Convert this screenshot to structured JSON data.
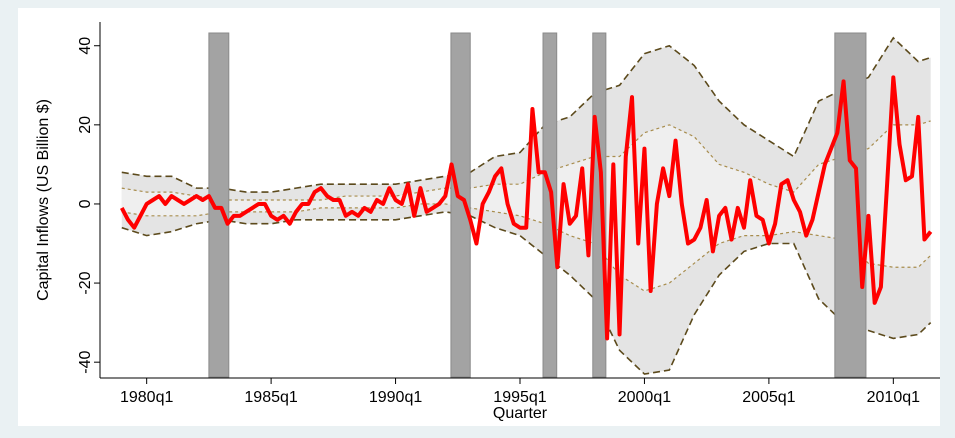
{
  "chart_data": {
    "type": "line",
    "y_label": "Capital Inflows (US Billion $)",
    "x_label": "Quarter",
    "xlim": [
      72.5,
      207.5
    ],
    "ylim": [
      -44,
      46
    ],
    "xticks": [
      {
        "value": 80,
        "label": "1980q1"
      },
      {
        "value": 100,
        "label": "1985q1"
      },
      {
        "value": 120,
        "label": "1990q1"
      },
      {
        "value": 140,
        "label": "1995q1"
      },
      {
        "value": 160,
        "label": "2000q1"
      },
      {
        "value": 180,
        "label": "2005q1"
      },
      {
        "value": 200,
        "label": "2010q1"
      }
    ],
    "yticks": [
      -40,
      -20,
      0,
      20,
      40
    ],
    "shade_color": "#a3a3a3",
    "shaded_periods": [
      [
        90,
        93.2
      ],
      [
        128.9,
        132
      ],
      [
        143.7,
        145.9
      ],
      [
        151.7,
        153.8
      ],
      [
        190.6,
        195.6
      ]
    ],
    "bands": {
      "x": [
        76,
        80,
        84,
        88,
        92,
        96,
        100,
        104,
        108,
        112,
        116,
        120,
        124,
        128,
        132,
        136,
        140,
        144,
        148,
        152,
        156,
        160,
        164,
        168,
        172,
        176,
        180,
        184,
        188,
        192,
        196,
        200,
        204,
        206
      ],
      "outer": {
        "color": "#5c4a1c",
        "fill": "#e4e4e4",
        "upper": [
          8,
          7,
          7,
          4,
          4,
          3,
          3,
          4,
          5,
          5,
          5,
          5,
          6,
          7,
          8,
          12,
          13,
          20,
          22,
          28,
          30,
          38,
          40,
          35,
          26,
          20,
          16,
          12,
          26,
          29,
          32,
          42,
          36,
          37
        ],
        "lower": [
          -6,
          -8,
          -7,
          -5,
          -4,
          -5,
          -5,
          -4,
          -4,
          -4,
          -4,
          -4,
          -3,
          -2,
          -3,
          -6,
          -8,
          -13,
          -18,
          -24,
          -37,
          -43,
          -42,
          -28,
          -18,
          -12,
          -10,
          -10,
          -24,
          -30,
          -32,
          -34,
          -33,
          -30
        ]
      },
      "inner": {
        "color": "#a88d4e",
        "fill": "#efefef",
        "upper": [
          4,
          3,
          3,
          2,
          1,
          1,
          1,
          1,
          1,
          2,
          2,
          2,
          3,
          4,
          4,
          5,
          5,
          8,
          10,
          12,
          12,
          18,
          20,
          17,
          10,
          8,
          5,
          3,
          10,
          12,
          14,
          20,
          20,
          21
        ],
        "lower": [
          -2,
          -3,
          -3,
          -3,
          -2,
          -2,
          -2,
          -2,
          -1,
          -1,
          -1,
          -1,
          0,
          0,
          -1,
          -2,
          -3,
          -5,
          -8,
          -10,
          -18,
          -22,
          -20,
          -15,
          -10,
          -8,
          -8,
          -7,
          -8,
          -9,
          -15,
          -16,
          -16,
          -13
        ]
      }
    },
    "x": [
      76,
      77,
      78,
      79,
      80,
      81,
      82,
      83,
      84,
      85,
      86,
      87,
      88,
      89,
      90,
      91,
      92,
      93,
      94,
      95,
      96,
      97,
      98,
      99,
      100,
      101,
      102,
      103,
      104,
      105,
      106,
      107,
      108,
      109,
      110,
      111,
      112,
      113,
      114,
      115,
      116,
      117,
      118,
      119,
      120,
      121,
      122,
      123,
      124,
      125,
      126,
      127,
      128,
      129,
      130,
      131,
      132,
      133,
      134,
      135,
      136,
      137,
      138,
      139,
      140,
      141,
      142,
      143,
      144,
      145,
      146,
      147,
      148,
      149,
      150,
      151,
      152,
      153,
      154,
      155,
      156,
      157,
      158,
      159,
      160,
      161,
      162,
      163,
      164,
      165,
      166,
      167,
      168,
      169,
      170,
      171,
      172,
      173,
      174,
      175,
      176,
      177,
      178,
      179,
      180,
      181,
      182,
      183,
      184,
      185,
      186,
      187,
      188,
      189,
      190,
      191,
      192,
      193,
      194,
      195,
      196,
      197,
      198,
      199,
      200,
      201,
      202,
      203,
      204,
      205,
      206
    ],
    "series": [
      {
        "color": "#ff0000",
        "values": [
          -1,
          -4,
          -6,
          -3,
          0,
          1,
          2,
          0,
          2,
          1,
          0,
          1,
          2,
          1,
          2,
          -1,
          -1,
          -5,
          -3,
          -3,
          -2,
          -1,
          0,
          0,
          -3,
          -4,
          -3,
          -5,
          -2,
          0,
          0,
          3,
          4,
          2,
          1,
          1,
          -3,
          -2,
          -3,
          -1,
          -2,
          1,
          0,
          4,
          1,
          0,
          5,
          -3,
          4,
          -2,
          -1,
          0,
          2,
          10,
          2,
          1,
          -4,
          -10,
          0,
          3,
          7,
          9,
          0,
          -5,
          -6,
          -6,
          24,
          8,
          8,
          3,
          -16,
          5,
          -5,
          -3,
          9,
          -13,
          22,
          8,
          -34,
          10,
          -33,
          12,
          27,
          -10,
          14,
          -22,
          0,
          9,
          2,
          16,
          0,
          -10,
          -9,
          -6,
          1,
          -12,
          -3,
          -1,
          -9,
          -1,
          -6,
          6,
          -3,
          -4,
          -10,
          -5,
          5,
          6,
          1,
          -2,
          -8,
          -4,
          3,
          10,
          14,
          18,
          31,
          11,
          9,
          -21,
          -3,
          -25,
          -21,
          5,
          32,
          15,
          6,
          7,
          22,
          -9,
          -7
        ]
      }
    ]
  }
}
